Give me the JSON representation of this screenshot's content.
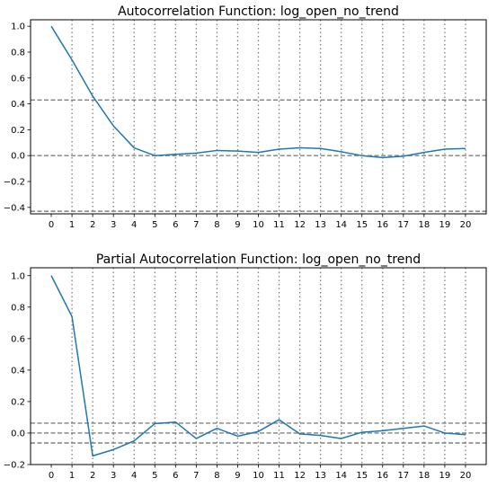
{
  "chart_data": [
    {
      "type": "line",
      "title": "Autocorrelation Function: log_open_no_trend",
      "x": [
        0,
        1,
        2,
        3,
        4,
        5,
        6,
        7,
        8,
        9,
        10,
        11,
        12,
        13,
        14,
        15,
        16,
        17,
        18,
        19,
        20
      ],
      "values": [
        1.0,
        0.74,
        0.46,
        0.23,
        0.06,
        0.0,
        0.01,
        0.02,
        0.04,
        0.035,
        0.025,
        0.05,
        0.06,
        0.055,
        0.03,
        0.0,
        -0.015,
        -0.005,
        0.025,
        0.05,
        0.055
      ],
      "xticks": [
        "0",
        "1",
        "2",
        "3",
        "4",
        "5",
        "6",
        "7",
        "8",
        "9",
        "10",
        "11",
        "12",
        "13",
        "14",
        "15",
        "16",
        "17",
        "18",
        "19",
        "20"
      ],
      "yticks": [
        "-0.4",
        "-0.2",
        "0.0",
        "0.2",
        "0.4",
        "0.6",
        "0.8",
        "1.0"
      ],
      "xlim": [
        -1,
        21
      ],
      "ylim": [
        -0.45,
        1.05
      ],
      "hlines_dashed": [
        0.43,
        0.0,
        -0.43
      ],
      "vlines_dotted": [
        1,
        2,
        3,
        4,
        5,
        6,
        7,
        8,
        9,
        10,
        11,
        12,
        13,
        14,
        15,
        16,
        17,
        18,
        19,
        20
      ],
      "line_color": "#1f77b4",
      "ref_color": "#808080"
    },
    {
      "type": "line",
      "title": "Partial Autocorrelation Function: log_open_no_trend",
      "x": [
        0,
        1,
        2,
        3,
        4,
        5,
        6,
        7,
        8,
        9,
        10,
        11,
        12,
        13,
        14,
        15,
        16,
        17,
        18,
        19,
        20
      ],
      "values": [
        1.0,
        0.74,
        -0.145,
        -0.105,
        -0.05,
        0.06,
        0.07,
        -0.035,
        0.03,
        -0.02,
        0.01,
        0.085,
        -0.005,
        -0.015,
        -0.035,
        0.005,
        0.015,
        0.03,
        0.045,
        0.0,
        -0.01
      ],
      "xticks": [
        "0",
        "1",
        "2",
        "3",
        "4",
        "5",
        "6",
        "7",
        "8",
        "9",
        "10",
        "11",
        "12",
        "13",
        "14",
        "15",
        "16",
        "17",
        "18",
        "19",
        "20"
      ],
      "yticks": [
        "-0.2",
        "0.0",
        "0.2",
        "0.4",
        "0.6",
        "0.8",
        "1.0"
      ],
      "xlim": [
        -1,
        21
      ],
      "ylim": [
        -0.2,
        1.05
      ],
      "hlines_dashed": [
        0.063,
        0.0,
        -0.063
      ],
      "vlines_dotted": [
        1,
        2,
        3,
        4,
        5,
        6,
        7,
        8,
        9,
        10,
        11,
        12,
        13,
        14,
        15,
        16,
        17,
        18,
        19,
        20
      ],
      "line_color": "#1f77b4",
      "ref_color": "#808080"
    }
  ]
}
